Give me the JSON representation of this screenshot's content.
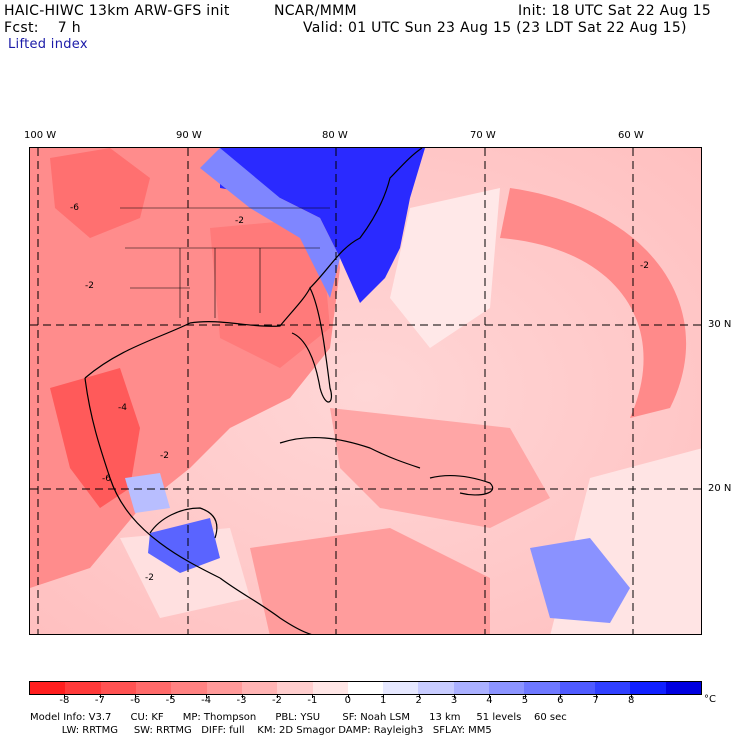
{
  "header": {
    "model_title": "HAIC-HIWC 13km ARW-GFS init",
    "org": "NCAR/MMM",
    "init": "Init: 18 UTC Sat 22 Aug 15",
    "fcst": "Fcst:    7 h",
    "valid": "Valid: 01 UTC Sun 23 Aug 15 (23 LDT Sat 22 Aug 15)",
    "field": "Lifted index"
  },
  "map": {
    "lon_labels": [
      "100 W",
      "90 W",
      "80 W",
      "70 W",
      "60 W"
    ],
    "lat_labels": [
      "30 N",
      "20 N"
    ],
    "contour_labels": [
      "-6",
      "-2",
      "-2",
      "-4",
      "-2",
      "-6",
      "-2",
      "-2"
    ]
  },
  "colorbar": {
    "unit": "°C",
    "ticks": [
      "-8",
      "-7",
      "-6",
      "-5",
      "-4",
      "-3",
      "-2",
      "-1",
      "0",
      "1",
      "2",
      "3",
      "4",
      "5",
      "6",
      "7",
      "8"
    ],
    "colors": [
      "#ff1e1e",
      "#ff3a3a",
      "#ff5252",
      "#ff6a6a",
      "#ff8282",
      "#ff9a9a",
      "#ffb4b4",
      "#ffcece",
      "#ffe6e6",
      "#ffffff",
      "#e6e8ff",
      "#c8ccff",
      "#aab0ff",
      "#8c94ff",
      "#6e78ff",
      "#4f5bff",
      "#3040ff",
      "#1020ff",
      "#0000e0"
    ]
  },
  "footer": {
    "line1": "Model Info: V3.7      CU: KF      MP: Thompson      PBL: YSU       SF: Noah LSM      13 km     51 levels    60 sec",
    "line2": "          LW: RRTMG     SW: RRTMG   DIFF: full    KM: 2D Smagor DAMP: Rayleigh3   SFLAY: MM5"
  }
}
